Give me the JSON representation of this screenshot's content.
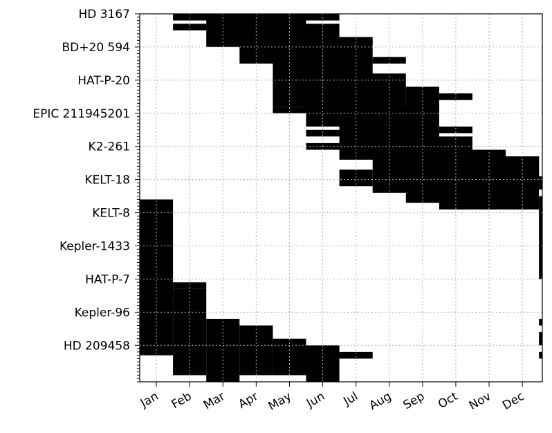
{
  "chart_data": {
    "type": "heatmap",
    "title": "",
    "xlabel": "",
    "ylabel": "",
    "x_categories": [
      "Jan",
      "Feb",
      "Mar",
      "Apr",
      "May",
      "Jun",
      "Jul",
      "Aug",
      "Sep",
      "Oct",
      "Nov",
      "Dec"
    ],
    "y_labels": [
      "HD 3167",
      "BD+20 594",
      "HAT-P-20",
      "EPIC 211945201",
      "K2-261",
      "KELT-18",
      "KELT-8",
      "Kepler-1433",
      "HAT-P-7",
      "Kepler-96",
      "HD 209458"
    ],
    "y_label_rows": [
      0,
      10,
      20,
      30,
      40,
      50,
      60,
      70,
      80,
      90,
      100
    ],
    "row_count": 111,
    "grid": true,
    "colors": {
      "filled": "#000000",
      "empty": "#ffffff",
      "grid": "#b0b0b0"
    },
    "visibility_matrix_description": "rows = target sub-rows (ticks every row, labels every 10), columns = months; 1 = observable",
    "filled_spans": [
      {
        "row_start": 0,
        "row_end": 1,
        "month_start": 2,
        "month_end": 6
      },
      {
        "row_start": 0,
        "row_end": 9,
        "month_start": 3,
        "month_end": 5
      },
      {
        "row_start": 3,
        "row_end": 4,
        "month_start": 2,
        "month_end": 2
      },
      {
        "row_start": 3,
        "row_end": 14,
        "month_start": 4,
        "month_end": 6
      },
      {
        "row_start": 7,
        "row_end": 8,
        "month_start": 7,
        "month_end": 7
      },
      {
        "row_start": 8,
        "row_end": 23,
        "month_start": 5,
        "month_end": 7
      },
      {
        "row_start": 13,
        "row_end": 14,
        "month_start": 8,
        "month_end": 8
      },
      {
        "row_start": 18,
        "row_end": 33,
        "month_start": 6,
        "month_end": 8
      },
      {
        "row_start": 22,
        "row_end": 29,
        "month_start": 9,
        "month_end": 9
      },
      {
        "row_start": 24,
        "row_end": 27,
        "month_start": 5,
        "month_end": 5
      },
      {
        "row_start": 24,
        "row_end": 25,
        "month_start": 10,
        "month_end": 10
      },
      {
        "row_start": 28,
        "row_end": 43,
        "month_start": 7,
        "month_end": 9
      },
      {
        "row_start": 28,
        "row_end": 29,
        "month_start": 5,
        "month_end": 5
      },
      {
        "row_start": 34,
        "row_end": 35,
        "month_start": 10,
        "month_end": 10
      },
      {
        "row_start": 35,
        "row_end": 36,
        "month_start": 6,
        "month_end": 6
      },
      {
        "row_start": 37,
        "row_end": 53,
        "month_start": 8,
        "month_end": 10
      },
      {
        "row_start": 39,
        "row_end": 40,
        "month_start": 6,
        "month_end": 6
      },
      {
        "row_start": 41,
        "row_end": 56,
        "month_start": 9,
        "month_end": 11
      },
      {
        "row_start": 43,
        "row_end": 58,
        "month_start": 10,
        "month_end": 12
      },
      {
        "row_start": 43,
        "row_end": 48,
        "month_start": 12,
        "month_end": 12
      },
      {
        "row_start": 47,
        "row_end": 51,
        "month_start": 7,
        "month_end": 7
      },
      {
        "row_start": 49,
        "row_end": 52,
        "month_start": 13,
        "month_end": 13
      },
      {
        "row_start": 55,
        "row_end": 79,
        "month_start": 13,
        "month_end": 13
      },
      {
        "row_start": 56,
        "row_end": 102,
        "month_start": 1,
        "month_end": 1
      },
      {
        "row_start": 81,
        "row_end": 82,
        "month_start": 2,
        "month_end": 2
      },
      {
        "row_start": 83,
        "row_end": 108,
        "month_start": 2,
        "month_end": 2
      },
      {
        "row_start": 92,
        "row_end": 93,
        "month_start": 3,
        "month_end": 3
      },
      {
        "row_start": 92,
        "row_end": 93,
        "month_start": 13,
        "month_end": 13
      },
      {
        "row_start": 94,
        "row_end": 110,
        "month_start": 3,
        "month_end": 3
      },
      {
        "row_start": 94,
        "row_end": 108,
        "month_start": 4,
        "month_end": 4
      },
      {
        "row_start": 96,
        "row_end": 97,
        "month_start": 4,
        "month_end": 4
      },
      {
        "row_start": 96,
        "row_end": 97,
        "month_start": 13,
        "month_end": 13
      },
      {
        "row_start": 98,
        "row_end": 99,
        "month_start": 13,
        "month_end": 13
      },
      {
        "row_start": 98,
        "row_end": 108,
        "month_start": 5,
        "month_end": 5
      },
      {
        "row_start": 100,
        "row_end": 103,
        "month_start": 6,
        "month_end": 6
      },
      {
        "row_start": 102,
        "row_end": 103,
        "month_start": 13,
        "month_end": 13
      },
      {
        "row_start": 102,
        "row_end": 103,
        "month_start": 7,
        "month_end": 7
      },
      {
        "row_start": 104,
        "row_end": 110,
        "month_start": 6,
        "month_end": 6
      }
    ]
  }
}
